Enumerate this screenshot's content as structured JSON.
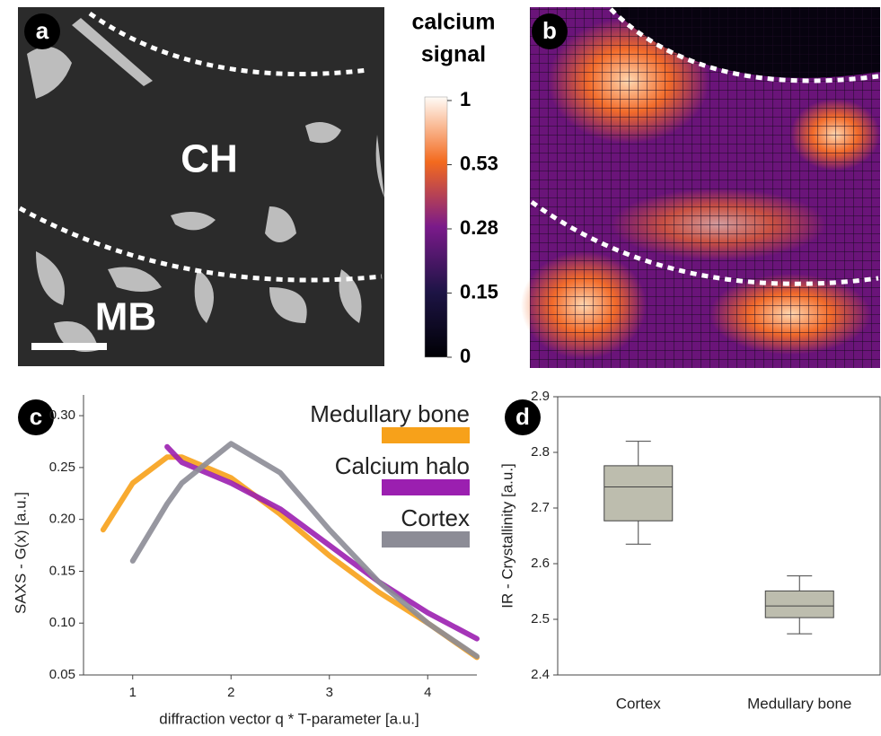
{
  "panel_labels": [
    "a",
    "b",
    "c",
    "d"
  ],
  "image_a": {
    "labels": [
      "CH",
      "MB"
    ]
  },
  "colorbar": {
    "title": [
      "calcium",
      "signal"
    ],
    "ticks": [
      1,
      0.53,
      0.28,
      0.15,
      0
    ]
  },
  "chart_data": [
    {
      "type": "line",
      "x_label": "diffraction vector q * T-parameter [a.u.]",
      "y_label": "SAXS - G(x) [a.u.]",
      "x": [
        0.7,
        1.0,
        1.35,
        1.5,
        2,
        2.5,
        3,
        3.5,
        4,
        4.5
      ],
      "series": [
        {
          "name": "Medullary bone",
          "color": "#f7a11a",
          "values": [
            0.19,
            0.235,
            0.26,
            0.26,
            0.24,
            0.205,
            0.165,
            0.13,
            0.1,
            0.067
          ]
        },
        {
          "name": "Calcium halo",
          "color": "#9b1fb0",
          "values": [
            null,
            null,
            0.27,
            0.255,
            0.235,
            0.21,
            0.175,
            0.14,
            0.11,
            0.085
          ]
        },
        {
          "name": "Cortex",
          "color": "#8c8c96",
          "values": [
            null,
            0.16,
            0.215,
            0.235,
            0.273,
            0.245,
            0.19,
            0.14,
            0.1,
            0.068
          ]
        }
      ],
      "xlim": [
        0.5,
        4.5
      ],
      "xticks": [
        1,
        2,
        3,
        4
      ],
      "ylim": [
        0.05,
        0.32
      ],
      "yticks": [
        {
          "value": 0.05,
          "label": "0.05"
        },
        {
          "value": 0.1,
          "label": "0.10"
        },
        {
          "value": 0.15,
          "label": "0.15"
        },
        {
          "value": 0.2,
          "label": "0.20"
        },
        {
          "value": 0.25,
          "label": "0.25"
        },
        {
          "value": 0.3,
          "label": "0.30"
        }
      ]
    },
    {
      "type": "box",
      "y_label": "IR - Crystallinity [a.u.]",
      "categories": [
        "Cortex",
        "Medullary bone"
      ],
      "color": "#bdbdae",
      "boxes": [
        {
          "min": 2.635,
          "q1": 2.677,
          "median": 2.738,
          "q3": 2.776,
          "max": 2.82
        },
        {
          "min": 2.474,
          "q1": 2.503,
          "median": 2.524,
          "q3": 2.551,
          "max": 2.578
        }
      ],
      "ylim": [
        2.4,
        2.9
      ],
      "yticks": [
        2.4,
        2.5,
        2.6,
        2.7,
        2.8,
        2.9
      ]
    }
  ]
}
